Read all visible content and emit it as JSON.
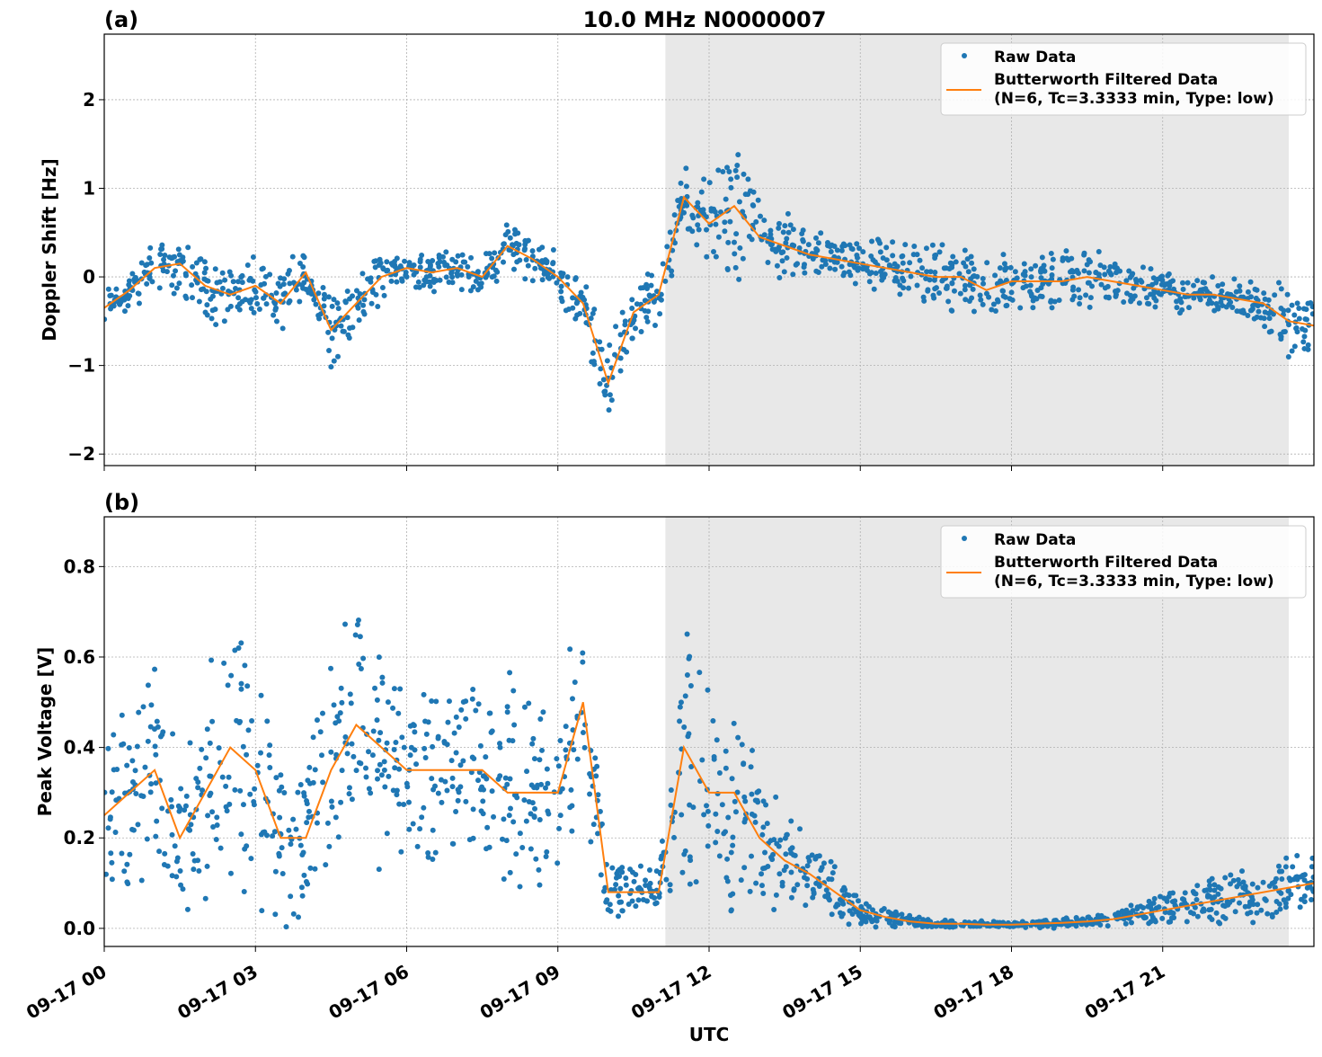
{
  "chart_data": [
    {
      "type": "scatter",
      "panel_label": "(a)",
      "title": "10.0 MHz N0000007",
      "ylabel": "Doppler Shift [Hz]",
      "xlabel": "",
      "xlim": [
        "09-17 00:00",
        "09-18 00:00"
      ],
      "ylim": [
        -2.13,
        2.74
      ],
      "yticks": [
        -2,
        -1,
        0,
        1,
        2
      ],
      "ytick_labels": [
        "−2",
        "−1",
        "0",
        "1",
        "2"
      ],
      "grid": true,
      "legend_placement": "top-right",
      "shaded_span": [
        "09-17 11:08",
        "09-17 23:30"
      ],
      "times": [
        "00:00",
        "00:30",
        "01:00",
        "01:30",
        "02:00",
        "02:30",
        "03:00",
        "03:30",
        "04:00",
        "04:30",
        "05:00",
        "05:30",
        "06:00",
        "06:30",
        "07:00",
        "07:30",
        "08:00",
        "08:30",
        "09:00",
        "09:30",
        "10:00",
        "10:30",
        "11:00",
        "11:30",
        "12:00",
        "12:30",
        "13:00",
        "13:30",
        "14:00",
        "14:30",
        "15:00",
        "15:30",
        "16:00",
        "16:30",
        "17:00",
        "17:30",
        "18:00",
        "18:30",
        "19:00",
        "19:30",
        "20:00",
        "20:30",
        "21:00",
        "21:30",
        "22:00",
        "22:30",
        "23:00",
        "23:30",
        "24:00"
      ],
      "series": [
        {
          "name": "Raw Data",
          "kind": "scatter",
          "color": "#1f77b4",
          "spread": [
            0.3,
            0.3,
            0.35,
            0.4,
            0.45,
            0.45,
            0.35,
            0.4,
            0.35,
            0.45,
            0.35,
            0.3,
            0.25,
            0.25,
            0.25,
            0.25,
            0.35,
            0.3,
            0.3,
            0.35,
            0.55,
            0.4,
            0.35,
            0.4,
            0.6,
            0.9,
            0.45,
            0.4,
            0.35,
            0.3,
            0.3,
            0.35,
            0.4,
            0.4,
            0.45,
            0.4,
            0.4,
            0.35,
            0.4,
            0.4,
            0.3,
            0.25,
            0.25,
            0.25,
            0.25,
            0.25,
            0.3,
            0.45,
            0.4
          ]
        },
        {
          "name": "Butterworth Filtered Data\n(N=6, Tc=3.3333 min, Type: low)",
          "kind": "line",
          "color": "#ff7f0e",
          "values": [
            -0.35,
            -0.15,
            0.1,
            0.15,
            -0.1,
            -0.2,
            -0.1,
            -0.3,
            0.05,
            -0.6,
            -0.3,
            0.0,
            0.1,
            0.05,
            0.1,
            0.0,
            0.35,
            0.2,
            0.0,
            -0.3,
            -1.2,
            -0.4,
            -0.2,
            0.9,
            0.6,
            0.8,
            0.45,
            0.35,
            0.25,
            0.2,
            0.15,
            0.1,
            0.05,
            0.0,
            0.0,
            -0.15,
            -0.05,
            -0.05,
            -0.05,
            0.0,
            -0.05,
            -0.1,
            -0.15,
            -0.2,
            -0.2,
            -0.25,
            -0.3,
            -0.5,
            -0.55
          ]
        }
      ],
      "legend": [
        "Raw Data",
        "Butterworth Filtered Data",
        "(N=6, Tc=3.3333 min, Type: low)"
      ]
    },
    {
      "type": "scatter",
      "panel_label": "(b)",
      "title": "",
      "ylabel": "Peak Voltage [V]",
      "xlabel": "UTC",
      "xlim": [
        "09-17 00:00",
        "09-18 00:00"
      ],
      "ylim": [
        -0.04,
        0.91
      ],
      "yticks": [
        0.0,
        0.2,
        0.4,
        0.6,
        0.8
      ],
      "ytick_labels": [
        "0.0",
        "0.2",
        "0.4",
        "0.6",
        "0.8"
      ],
      "xticks": [
        "09-17 00",
        "09-17 03",
        "09-17 06",
        "09-17 09",
        "09-17 12",
        "09-17 15",
        "09-17 18",
        "09-17 21"
      ],
      "grid": true,
      "legend_placement": "top-right",
      "shaded_span": [
        "09-17 11:08",
        "09-17 23:30"
      ],
      "times": [
        "00:00",
        "00:30",
        "01:00",
        "01:30",
        "02:00",
        "02:30",
        "03:00",
        "03:30",
        "04:00",
        "04:30",
        "05:00",
        "05:30",
        "06:00",
        "06:30",
        "07:00",
        "07:30",
        "08:00",
        "08:30",
        "09:00",
        "09:30",
        "10:00",
        "10:30",
        "11:00",
        "11:30",
        "12:00",
        "12:30",
        "13:00",
        "13:30",
        "14:00",
        "14:30",
        "15:00",
        "15:30",
        "16:00",
        "16:30",
        "17:00",
        "17:30",
        "18:00",
        "18:30",
        "19:00",
        "19:30",
        "20:00",
        "20:30",
        "21:00",
        "21:30",
        "22:00",
        "22:30",
        "23:00",
        "23:30",
        "24:00"
      ],
      "series": [
        {
          "name": "Raw Data",
          "kind": "scatter",
          "color": "#1f77b4",
          "spread": [
            0.2,
            0.25,
            0.3,
            0.2,
            0.3,
            0.35,
            0.35,
            0.3,
            0.2,
            0.3,
            0.3,
            0.3,
            0.25,
            0.25,
            0.25,
            0.25,
            0.3,
            0.25,
            0.25,
            0.3,
            0.06,
            0.06,
            0.06,
            0.35,
            0.3,
            0.3,
            0.15,
            0.12,
            0.1,
            0.08,
            0.04,
            0.025,
            0.015,
            0.01,
            0.01,
            0.008,
            0.008,
            0.01,
            0.012,
            0.015,
            0.02,
            0.03,
            0.04,
            0.05,
            0.06,
            0.06,
            0.07,
            0.08,
            0.08
          ]
        },
        {
          "name": "Butterworth Filtered Data\n(N=6, Tc=3.3333 min, Type: low)",
          "kind": "line",
          "color": "#ff7f0e",
          "values": [
            0.25,
            0.3,
            0.35,
            0.2,
            0.3,
            0.4,
            0.35,
            0.2,
            0.2,
            0.35,
            0.45,
            0.4,
            0.35,
            0.35,
            0.35,
            0.35,
            0.3,
            0.3,
            0.3,
            0.5,
            0.08,
            0.08,
            0.08,
            0.4,
            0.3,
            0.3,
            0.2,
            0.15,
            0.12,
            0.08,
            0.04,
            0.025,
            0.015,
            0.01,
            0.01,
            0.008,
            0.008,
            0.01,
            0.012,
            0.015,
            0.02,
            0.03,
            0.04,
            0.05,
            0.06,
            0.07,
            0.08,
            0.09,
            0.1
          ]
        }
      ],
      "legend": [
        "Raw Data",
        "Butterworth Filtered Data",
        "(N=6, Tc=3.3333 min, Type: low)"
      ]
    }
  ]
}
